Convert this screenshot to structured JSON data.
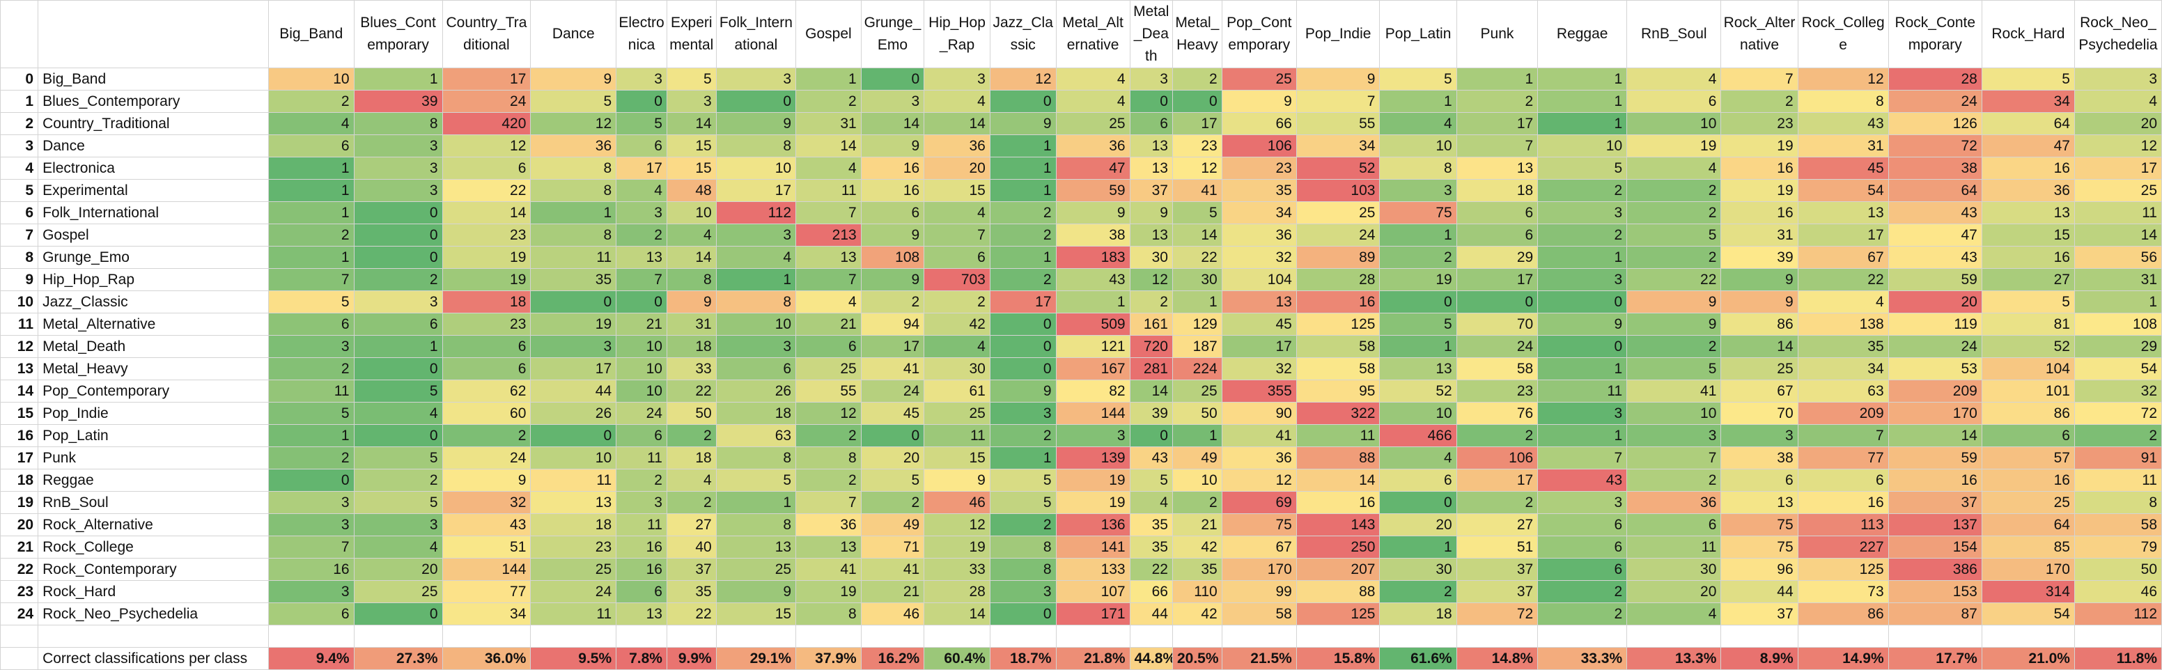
{
  "columns": [
    "Big_Band",
    "Blues_Contemporary",
    "Country_Traditional",
    "Dance",
    "Electronica",
    "Experimental",
    "Folk_International",
    "Gospel",
    "Grunge_Emo",
    "Hip_Hop_Rap",
    "Jazz_Classic",
    "Metal_Alternative",
    "Metal_Death",
    "Metal_Heavy",
    "Pop_Contemporary",
    "Pop_Indie",
    "Pop_Latin",
    "Punk",
    "Reggae",
    "RnB_Soul",
    "Rock_Alternative",
    "Rock_College",
    "Rock_Contemporary",
    "Rock_Hard",
    "Rock_Neo_Psychedelia"
  ],
  "rows": [
    {
      "index": "0",
      "label": "Big_Band",
      "values": [
        "10",
        "1",
        "17",
        "9",
        "3",
        "5",
        "3",
        "1",
        "0",
        "3",
        "12",
        "4",
        "3",
        "2",
        "25",
        "9",
        "5",
        "1",
        "1",
        "4",
        "7",
        "12",
        "28",
        "5",
        "3"
      ]
    },
    {
      "index": "1",
      "label": "Blues_Contemporary",
      "values": [
        "2",
        "39",
        "24",
        "5",
        "0",
        "3",
        "0",
        "2",
        "3",
        "4",
        "0",
        "4",
        "0",
        "0",
        "9",
        "7",
        "1",
        "2",
        "1",
        "6",
        "2",
        "8",
        "24",
        "34",
        "4"
      ]
    },
    {
      "index": "2",
      "label": "Country_Traditional",
      "values": [
        "4",
        "8",
        "420",
        "12",
        "5",
        "14",
        "9",
        "31",
        "14",
        "14",
        "9",
        "25",
        "6",
        "17",
        "66",
        "55",
        "4",
        "17",
        "1",
        "10",
        "23",
        "43",
        "126",
        "64",
        "20"
      ]
    },
    {
      "index": "3",
      "label": "Dance",
      "values": [
        "6",
        "3",
        "12",
        "36",
        "6",
        "15",
        "8",
        "14",
        "9",
        "36",
        "1",
        "36",
        "13",
        "23",
        "106",
        "34",
        "10",
        "7",
        "10",
        "19",
        "19",
        "31",
        "72",
        "47",
        "12"
      ]
    },
    {
      "index": "4",
      "label": "Electronica",
      "values": [
        "1",
        "3",
        "6",
        "8",
        "17",
        "15",
        "10",
        "4",
        "16",
        "20",
        "1",
        "47",
        "13",
        "12",
        "23",
        "52",
        "8",
        "13",
        "5",
        "4",
        "16",
        "45",
        "38",
        "16",
        "17"
      ]
    },
    {
      "index": "5",
      "label": "Experimental",
      "values": [
        "1",
        "3",
        "22",
        "8",
        "4",
        "48",
        "17",
        "11",
        "16",
        "15",
        "1",
        "59",
        "37",
        "41",
        "35",
        "103",
        "3",
        "18",
        "2",
        "2",
        "19",
        "54",
        "64",
        "36",
        "25"
      ]
    },
    {
      "index": "6",
      "label": "Folk_International",
      "values": [
        "1",
        "0",
        "14",
        "1",
        "3",
        "10",
        "112",
        "7",
        "6",
        "4",
        "2",
        "9",
        "9",
        "5",
        "34",
        "25",
        "75",
        "6",
        "3",
        "2",
        "16",
        "13",
        "43",
        "13",
        "11"
      ]
    },
    {
      "index": "7",
      "label": "Gospel",
      "values": [
        "2",
        "0",
        "23",
        "8",
        "2",
        "4",
        "3",
        "213",
        "9",
        "7",
        "2",
        "38",
        "13",
        "14",
        "36",
        "24",
        "1",
        "6",
        "2",
        "5",
        "31",
        "17",
        "47",
        "15",
        "14"
      ]
    },
    {
      "index": "8",
      "label": "Grunge_Emo",
      "values": [
        "1",
        "0",
        "19",
        "11",
        "13",
        "14",
        "4",
        "13",
        "108",
        "6",
        "1",
        "183",
        "30",
        "22",
        "32",
        "89",
        "2",
        "29",
        "1",
        "2",
        "39",
        "67",
        "43",
        "16",
        "56"
      ]
    },
    {
      "index": "9",
      "label": "Hip_Hop_Rap",
      "values": [
        "7",
        "2",
        "19",
        "35",
        "7",
        "8",
        "1",
        "7",
        "9",
        "703",
        "2",
        "43",
        "12",
        "30",
        "104",
        "28",
        "19",
        "17",
        "3",
        "22",
        "9",
        "22",
        "59",
        "27",
        "31"
      ]
    },
    {
      "index": "10",
      "label": "Jazz_Classic",
      "values": [
        "5",
        "3",
        "18",
        "0",
        "0",
        "9",
        "8",
        "4",
        "2",
        "2",
        "17",
        "1",
        "2",
        "1",
        "13",
        "16",
        "0",
        "0",
        "0",
        "9",
        "9",
        "4",
        "20",
        "5",
        "1"
      ]
    },
    {
      "index": "11",
      "label": "Metal_Alternative",
      "values": [
        "6",
        "6",
        "23",
        "19",
        "21",
        "31",
        "10",
        "21",
        "94",
        "42",
        "0",
        "509",
        "161",
        "129",
        "45",
        "125",
        "5",
        "70",
        "9",
        "9",
        "86",
        "138",
        "119",
        "81",
        "108"
      ]
    },
    {
      "index": "12",
      "label": "Metal_Death",
      "values": [
        "3",
        "1",
        "6",
        "3",
        "10",
        "18",
        "3",
        "6",
        "17",
        "4",
        "0",
        "121",
        "720",
        "187",
        "17",
        "58",
        "1",
        "24",
        "0",
        "2",
        "14",
        "35",
        "24",
        "52",
        "29"
      ]
    },
    {
      "index": "13",
      "label": "Metal_Heavy",
      "values": [
        "2",
        "0",
        "6",
        "17",
        "10",
        "33",
        "6",
        "25",
        "41",
        "30",
        "0",
        "167",
        "281",
        "224",
        "32",
        "58",
        "13",
        "58",
        "1",
        "5",
        "25",
        "34",
        "53",
        "104",
        "54"
      ]
    },
    {
      "index": "14",
      "label": "Pop_Contemporary",
      "values": [
        "11",
        "5",
        "62",
        "44",
        "10",
        "22",
        "26",
        "55",
        "24",
        "61",
        "9",
        "82",
        "14",
        "25",
        "355",
        "95",
        "52",
        "23",
        "11",
        "41",
        "67",
        "63",
        "209",
        "101",
        "32"
      ]
    },
    {
      "index": "15",
      "label": "Pop_Indie",
      "values": [
        "5",
        "4",
        "60",
        "26",
        "24",
        "50",
        "18",
        "12",
        "45",
        "25",
        "3",
        "144",
        "39",
        "50",
        "90",
        "322",
        "10",
        "76",
        "3",
        "10",
        "70",
        "209",
        "170",
        "86",
        "72"
      ]
    },
    {
      "index": "16",
      "label": "Pop_Latin",
      "values": [
        "1",
        "0",
        "2",
        "0",
        "6",
        "2",
        "63",
        "2",
        "0",
        "11",
        "2",
        "3",
        "0",
        "1",
        "41",
        "11",
        "466",
        "2",
        "1",
        "3",
        "3",
        "7",
        "14",
        "6",
        "2"
      ]
    },
    {
      "index": "17",
      "label": "Punk",
      "values": [
        "2",
        "5",
        "24",
        "10",
        "11",
        "18",
        "8",
        "8",
        "20",
        "15",
        "1",
        "139",
        "43",
        "49",
        "36",
        "88",
        "4",
        "106",
        "7",
        "7",
        "38",
        "77",
        "59",
        "57",
        "91"
      ]
    },
    {
      "index": "18",
      "label": "Reggae",
      "values": [
        "0",
        "2",
        "9",
        "11",
        "2",
        "4",
        "5",
        "2",
        "5",
        "9",
        "5",
        "19",
        "5",
        "10",
        "12",
        "14",
        "6",
        "17",
        "43",
        "2",
        "6",
        "6",
        "16",
        "16",
        "11"
      ]
    },
    {
      "index": "19",
      "label": "RnB_Soul",
      "values": [
        "3",
        "5",
        "32",
        "13",
        "3",
        "2",
        "1",
        "7",
        "2",
        "46",
        "5",
        "19",
        "4",
        "2",
        "69",
        "16",
        "0",
        "2",
        "3",
        "36",
        "13",
        "16",
        "37",
        "25",
        "8"
      ]
    },
    {
      "index": "20",
      "label": "Rock_Alternative",
      "values": [
        "3",
        "3",
        "43",
        "18",
        "11",
        "27",
        "8",
        "36",
        "49",
        "12",
        "2",
        "136",
        "35",
        "21",
        "75",
        "143",
        "20",
        "27",
        "6",
        "6",
        "75",
        "113",
        "137",
        "64",
        "58"
      ]
    },
    {
      "index": "21",
      "label": "Rock_College",
      "values": [
        "7",
        "4",
        "51",
        "23",
        "16",
        "40",
        "13",
        "13",
        "71",
        "19",
        "8",
        "141",
        "35",
        "42",
        "67",
        "250",
        "1",
        "51",
        "6",
        "11",
        "75",
        "227",
        "154",
        "85",
        "79"
      ]
    },
    {
      "index": "22",
      "label": "Rock_Contemporary",
      "values": [
        "16",
        "20",
        "144",
        "25",
        "16",
        "37",
        "25",
        "41",
        "41",
        "33",
        "8",
        "133",
        "22",
        "35",
        "170",
        "207",
        "30",
        "37",
        "6",
        "30",
        "96",
        "125",
        "386",
        "170",
        "50"
      ]
    },
    {
      "index": "23",
      "label": "Rock_Hard",
      "values": [
        "3",
        "25",
        "77",
        "24",
        "6",
        "35",
        "9",
        "19",
        "21",
        "28",
        "3",
        "107",
        "66",
        "110",
        "99",
        "88",
        "2",
        "37",
        "2",
        "20",
        "44",
        "73",
        "153",
        "314",
        "46"
      ]
    },
    {
      "index": "24",
      "label": "Rock_Neo_Psychedelia",
      "values": [
        "6",
        "0",
        "34",
        "11",
        "13",
        "22",
        "15",
        "8",
        "46",
        "14",
        "0",
        "171",
        "44",
        "42",
        "58",
        "125",
        "18",
        "72",
        "2",
        "4",
        "37",
        "86",
        "87",
        "54",
        "112"
      ]
    }
  ],
  "summary": {
    "label": "Correct classifications per class",
    "values": [
      "9.4%",
      "27.3%",
      "36.0%",
      "9.5%",
      "7.8%",
      "9.9%",
      "29.1%",
      "37.9%",
      "16.2%",
      "60.4%",
      "18.7%",
      "21.8%",
      "44.8%",
      "20.5%",
      "21.5%",
      "15.8%",
      "61.6%",
      "14.8%",
      "33.3%",
      "13.3%",
      "8.9%",
      "14.9%",
      "17.7%",
      "21.0%",
      "11.8%"
    ]
  },
  "colors": {
    "red": "#e8706f",
    "yellow": "#fde88a",
    "green": "#63b56f",
    "grid": "#d4d4d4"
  }
}
